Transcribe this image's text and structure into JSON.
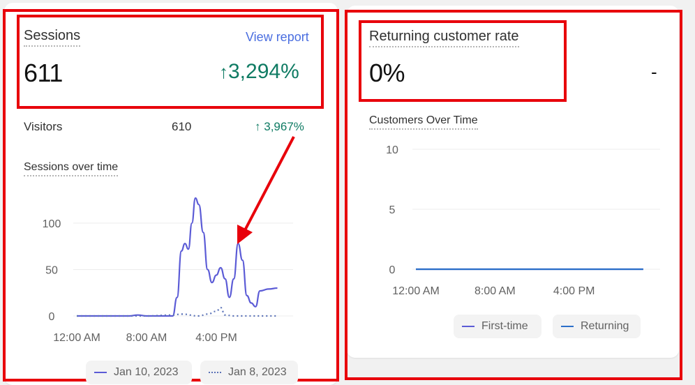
{
  "sessions_card": {
    "title": "Sessions",
    "view_report_label": "View report",
    "value": "611",
    "change_arrow": "↑",
    "change": "3,294%",
    "visitors": {
      "label": "Visitors",
      "value": "610",
      "change_arrow": "↑",
      "change": "3,967%"
    },
    "chart_title": "Sessions over time",
    "legend": [
      {
        "label": "Jan 10, 2023",
        "style": "solid",
        "color": "#5b5bd6"
      },
      {
        "label": "Jan 8, 2023",
        "style": "dotted",
        "color": "#5b72b8"
      }
    ]
  },
  "returning_card": {
    "title": "Returning customer rate",
    "value": "0%",
    "change": "-",
    "chart_title": "Customers Over Time",
    "legend": [
      {
        "label": "First-time",
        "color": "#5b5bd6"
      },
      {
        "label": "Returning",
        "color": "#2c6fc9"
      }
    ]
  },
  "colors": {
    "positive": "#0f7b63",
    "link": "#4a6ee0",
    "highlight": "#e8000b"
  },
  "chart_data": [
    {
      "type": "line",
      "title": "Sessions over time",
      "xlabel": "",
      "ylabel": "",
      "x_ticks": [
        "12:00 AM",
        "8:00 AM",
        "4:00 PM"
      ],
      "y_ticks": [
        "0",
        "50",
        "100"
      ],
      "xlim": [
        0,
        24
      ],
      "ylim": [
        0,
        130
      ],
      "series": [
        {
          "name": "Jan 10, 2023",
          "style": "solid",
          "color": "#5b5bd6",
          "points": [
            [
              0,
              0
            ],
            [
              2,
              0
            ],
            [
              4,
              0
            ],
            [
              6,
              0
            ],
            [
              7,
              1
            ],
            [
              8,
              0
            ],
            [
              9,
              0
            ],
            [
              10,
              0
            ],
            [
              11,
              0
            ],
            [
              11.5,
              20
            ],
            [
              12,
              70
            ],
            [
              12.4,
              78
            ],
            [
              12.8,
              72
            ],
            [
              13.2,
              100
            ],
            [
              13.6,
              127
            ],
            [
              14,
              120
            ],
            [
              14.5,
              90
            ],
            [
              15,
              50
            ],
            [
              15.5,
              36
            ],
            [
              16,
              44
            ],
            [
              16.5,
              52
            ],
            [
              17,
              40
            ],
            [
              17.5,
              20
            ],
            [
              18,
              40
            ],
            [
              18.5,
              78
            ],
            [
              19,
              60
            ],
            [
              19.5,
              22
            ],
            [
              20,
              14
            ],
            [
              20.5,
              10
            ],
            [
              21,
              27
            ],
            [
              22,
              29
            ],
            [
              23,
              30
            ]
          ]
        },
        {
          "name": "Jan 8, 2023",
          "style": "dotted",
          "color": "#5b72b8",
          "points": [
            [
              0,
              0
            ],
            [
              8,
              0
            ],
            [
              11,
              1
            ],
            [
              12,
              2
            ],
            [
              14,
              0
            ],
            [
              15,
              2
            ],
            [
              16,
              5
            ],
            [
              16.5,
              9
            ],
            [
              17,
              1
            ],
            [
              18,
              0
            ],
            [
              23,
              0
            ]
          ]
        }
      ]
    },
    {
      "type": "line",
      "title": "Customers Over Time",
      "xlabel": "",
      "ylabel": "",
      "x_ticks": [
        "12:00 AM",
        "8:00 AM",
        "4:00 PM"
      ],
      "y_ticks": [
        "0",
        "5",
        "10"
      ],
      "xlim": [
        0,
        24
      ],
      "ylim": [
        0,
        10
      ],
      "series": [
        {
          "name": "First-time",
          "color": "#5b5bd6",
          "points": [
            [
              0,
              0
            ],
            [
              23,
              0
            ]
          ]
        },
        {
          "name": "Returning",
          "color": "#2c6fc9",
          "points": [
            [
              0,
              0
            ],
            [
              23,
              0
            ]
          ]
        }
      ]
    }
  ]
}
